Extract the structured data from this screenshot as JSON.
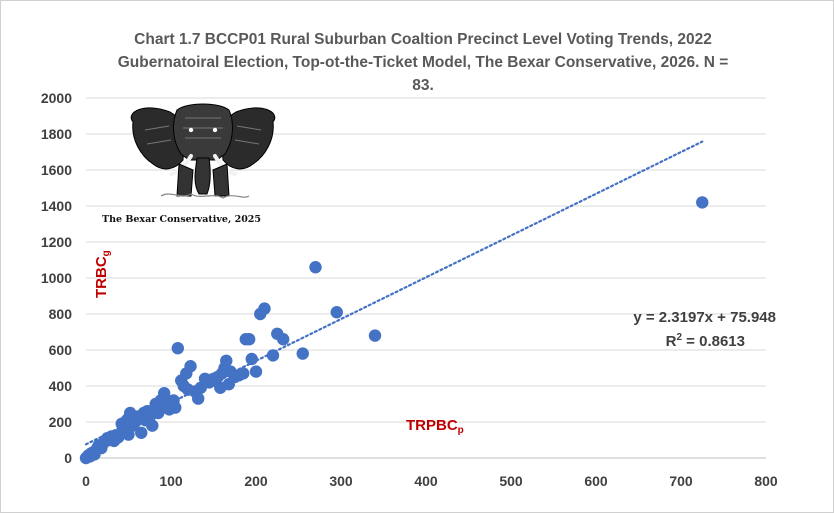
{
  "chart_data": {
    "type": "scatter",
    "title_lines": [
      "Chart 1.7 BCCP01 Rural Suburban Coaltion Precinct Level Voting Trends, 2022",
      "Gubernatoiral Election, Top-ot-the-Ticket Model, The Bexar Conservative, 2026.  N =",
      "83."
    ],
    "xlabel": {
      "main": "TRPBC",
      "sub": "p"
    },
    "ylabel": {
      "main": "TRBC",
      "sub": "g"
    },
    "xlim": [
      0,
      800
    ],
    "ylim": [
      0,
      2000
    ],
    "x_ticks": [
      0,
      100,
      200,
      300,
      400,
      500,
      600,
      700,
      800
    ],
    "y_ticks": [
      0,
      200,
      400,
      600,
      800,
      1000,
      1200,
      1400,
      1600,
      1800,
      2000
    ],
    "grid": "horizontal",
    "marker_color": "#4472c4",
    "trendline": {
      "slope": 2.3197,
      "intercept": 75.948,
      "x_range": [
        0,
        725
      ],
      "style": "dotted",
      "color": "#4472c4"
    },
    "equation_text": "y = 2.3197x + 75.948",
    "r2_label": "R",
    "r2_sup": "2",
    "r2_value_text": " = 0.8613",
    "points": [
      [
        0,
        0
      ],
      [
        2,
        5
      ],
      [
        3,
        15
      ],
      [
        5,
        10
      ],
      [
        6,
        25
      ],
      [
        8,
        30
      ],
      [
        10,
        20
      ],
      [
        12,
        45
      ],
      [
        14,
        60
      ],
      [
        15,
        70
      ],
      [
        18,
        55
      ],
      [
        20,
        80
      ],
      [
        22,
        90
      ],
      [
        25,
        110
      ],
      [
        28,
        100
      ],
      [
        30,
        120
      ],
      [
        33,
        95
      ],
      [
        35,
        125
      ],
      [
        38,
        115
      ],
      [
        40,
        130
      ],
      [
        42,
        190
      ],
      [
        45,
        140
      ],
      [
        48,
        210
      ],
      [
        50,
        130
      ],
      [
        50,
        220
      ],
      [
        52,
        250
      ],
      [
        55,
        180
      ],
      [
        58,
        200
      ],
      [
        60,
        230
      ],
      [
        65,
        140
      ],
      [
        68,
        250
      ],
      [
        70,
        210
      ],
      [
        72,
        260
      ],
      [
        75,
        230
      ],
      [
        78,
        180
      ],
      [
        80,
        270
      ],
      [
        82,
        300
      ],
      [
        85,
        250
      ],
      [
        88,
        320
      ],
      [
        90,
        280
      ],
      [
        92,
        360
      ],
      [
        95,
        300
      ],
      [
        98,
        270
      ],
      [
        100,
        300
      ],
      [
        103,
        320
      ],
      [
        105,
        280
      ],
      [
        108,
        610
      ],
      [
        112,
        430
      ],
      [
        115,
        400
      ],
      [
        118,
        470
      ],
      [
        120,
        380
      ],
      [
        123,
        510
      ],
      [
        128,
        370
      ],
      [
        132,
        330
      ],
      [
        135,
        390
      ],
      [
        140,
        440
      ],
      [
        145,
        420
      ],
      [
        150,
        440
      ],
      [
        152,
        430
      ],
      [
        155,
        450
      ],
      [
        158,
        390
      ],
      [
        160,
        470
      ],
      [
        163,
        500
      ],
      [
        165,
        540
      ],
      [
        168,
        410
      ],
      [
        170,
        480
      ],
      [
        175,
        450
      ],
      [
        180,
        460
      ],
      [
        185,
        470
      ],
      [
        188,
        660
      ],
      [
        192,
        660
      ],
      [
        195,
        550
      ],
      [
        200,
        480
      ],
      [
        205,
        800
      ],
      [
        210,
        830
      ],
      [
        220,
        570
      ],
      [
        225,
        690
      ],
      [
        232,
        660
      ],
      [
        255,
        580
      ],
      [
        270,
        1060
      ],
      [
        295,
        810
      ],
      [
        340,
        680
      ],
      [
        725,
        1420
      ]
    ]
  },
  "watermark": {
    "caption": "The Bexar Conservative, 2025"
  },
  "icons": {
    "logo": "elephant-icon"
  }
}
